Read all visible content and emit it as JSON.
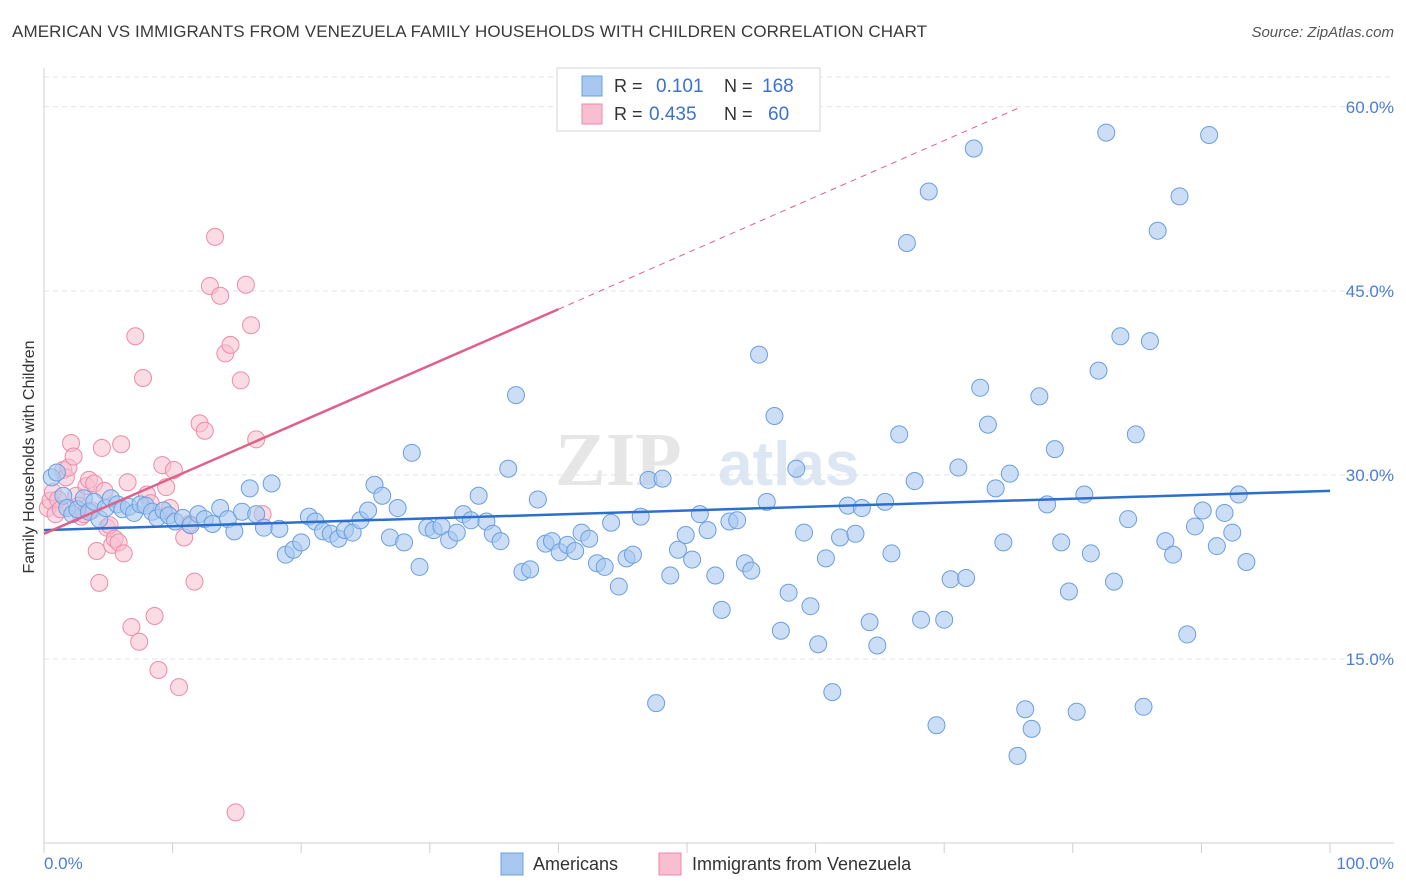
{
  "title": "AMERICAN VS IMMIGRANTS FROM VENEZUELA FAMILY HOUSEHOLDS WITH CHILDREN CORRELATION CHART",
  "source": "Source: ZipAtlas.com",
  "watermark": {
    "zip": "ZIP",
    "atlas": "atlas"
  },
  "legend_box": {
    "rows": [
      {
        "r_label": "R =",
        "r_value": "0.101",
        "n_label": "N =",
        "n_value": "168",
        "color": "#9ec2ef"
      },
      {
        "r_label": "R =",
        "r_value": "0.435",
        "n_label": "N =",
        "n_value": "60",
        "color": "#f5b8cb"
      }
    ]
  },
  "colors": {
    "americans_fill": "#a9c8f0",
    "americans_stroke": "#6a9fe0",
    "americans_line": "#2c6fcf",
    "venezuela_fill": "#f7bfd0",
    "venezuela_stroke": "#ee8aa8",
    "venezuela_line": "#e0608a",
    "axis_label_blue": "#4a7fd4",
    "grid": "#e3e3e3"
  },
  "chart_data": {
    "type": "scatter",
    "title": "AMERICAN VS IMMIGRANTS FROM VENEZUELA FAMILY HOUSEHOLDS WITH CHILDREN CORRELATION CHART",
    "xlabel": "",
    "ylabel": "Family Households with Children",
    "xlim": [
      0,
      100
    ],
    "ylim": [
      0,
      63
    ],
    "x_tick_labels": [
      "0.0%",
      "100.0%"
    ],
    "y_ticks": [
      15,
      30,
      45,
      60
    ],
    "y_tick_labels": [
      "15.0%",
      "30.0%",
      "45.0%",
      "60.0%"
    ],
    "grid": true,
    "legend_position": "bottom",
    "series": [
      {
        "name": "Americans",
        "r": 0.101,
        "n": 168,
        "trend": {
          "x0": 0,
          "y0": 25.5,
          "x1": 100,
          "y1": 28.7
        },
        "points": [
          [
            0.6,
            29.8
          ],
          [
            1.0,
            30.2
          ],
          [
            1.5,
            28.3
          ],
          [
            1.8,
            27.3
          ],
          [
            2.2,
            26.8
          ],
          [
            2.6,
            27.2
          ],
          [
            3.1,
            28.1
          ],
          [
            3.5,
            27.0
          ],
          [
            3.9,
            27.8
          ],
          [
            4.3,
            26.4
          ],
          [
            4.8,
            27.3
          ],
          [
            5.2,
            28.1
          ],
          [
            5.7,
            27.6
          ],
          [
            6.1,
            27.2
          ],
          [
            6.6,
            27.4
          ],
          [
            7.0,
            26.9
          ],
          [
            7.5,
            27.6
          ],
          [
            7.9,
            27.5
          ],
          [
            8.4,
            27.0
          ],
          [
            8.8,
            26.5
          ],
          [
            9.3,
            27.1
          ],
          [
            9.7,
            26.7
          ],
          [
            10.2,
            26.2
          ],
          [
            10.8,
            26.5
          ],
          [
            11.4,
            25.9
          ],
          [
            12.0,
            26.8
          ],
          [
            12.5,
            26.4
          ],
          [
            13.1,
            26.0
          ],
          [
            13.7,
            27.3
          ],
          [
            14.3,
            26.4
          ],
          [
            14.8,
            25.4
          ],
          [
            15.4,
            27.0
          ],
          [
            16.0,
            28.9
          ],
          [
            16.5,
            26.8
          ],
          [
            17.1,
            25.7
          ],
          [
            17.7,
            29.3
          ],
          [
            18.3,
            25.6
          ],
          [
            18.8,
            23.5
          ],
          [
            19.4,
            23.9
          ],
          [
            20.0,
            24.5
          ],
          [
            20.6,
            26.6
          ],
          [
            21.1,
            26.2
          ],
          [
            21.7,
            25.4
          ],
          [
            22.3,
            25.2
          ],
          [
            22.9,
            24.8
          ],
          [
            23.4,
            25.5
          ],
          [
            24.0,
            25.3
          ],
          [
            24.6,
            26.3
          ],
          [
            25.2,
            27.1
          ],
          [
            25.7,
            29.2
          ],
          [
            26.3,
            28.3
          ],
          [
            26.9,
            24.9
          ],
          [
            27.5,
            27.3
          ],
          [
            28.0,
            24.5
          ],
          [
            28.6,
            31.8
          ],
          [
            29.2,
            22.5
          ],
          [
            29.8,
            25.7
          ],
          [
            30.3,
            25.5
          ],
          [
            30.9,
            25.8
          ],
          [
            31.5,
            24.7
          ],
          [
            32.1,
            25.3
          ],
          [
            32.6,
            26.8
          ],
          [
            33.2,
            26.3
          ],
          [
            33.8,
            28.3
          ],
          [
            34.4,
            26.2
          ],
          [
            34.9,
            25.2
          ],
          [
            35.5,
            24.6
          ],
          [
            36.1,
            30.5
          ],
          [
            36.7,
            36.5
          ],
          [
            37.2,
            22.1
          ],
          [
            37.8,
            22.3
          ],
          [
            38.4,
            28.0
          ],
          [
            39.0,
            24.4
          ],
          [
            39.5,
            24.6
          ],
          [
            40.1,
            23.7
          ],
          [
            40.7,
            24.3
          ],
          [
            41.3,
            23.8
          ],
          [
            41.8,
            25.3
          ],
          [
            42.4,
            24.8
          ],
          [
            43.0,
            22.8
          ],
          [
            43.6,
            22.5
          ],
          [
            44.1,
            26.1
          ],
          [
            44.7,
            20.9
          ],
          [
            45.3,
            23.2
          ],
          [
            45.8,
            23.5
          ],
          [
            46.4,
            26.6
          ],
          [
            47.0,
            29.6
          ],
          [
            47.6,
            11.4
          ],
          [
            48.1,
            29.7
          ],
          [
            48.7,
            21.8
          ],
          [
            49.3,
            23.9
          ],
          [
            49.9,
            25.1
          ],
          [
            50.4,
            23.1
          ],
          [
            51.0,
            26.8
          ],
          [
            51.6,
            25.5
          ],
          [
            52.2,
            21.8
          ],
          [
            52.7,
            19.0
          ],
          [
            53.3,
            26.2
          ],
          [
            53.9,
            26.3
          ],
          [
            54.5,
            22.8
          ],
          [
            55.0,
            22.2
          ],
          [
            55.6,
            39.8
          ],
          [
            56.2,
            27.8
          ],
          [
            56.8,
            34.8
          ],
          [
            57.3,
            17.3
          ],
          [
            57.9,
            20.4
          ],
          [
            58.5,
            30.5
          ],
          [
            59.1,
            25.3
          ],
          [
            59.6,
            19.3
          ],
          [
            60.2,
            16.2
          ],
          [
            60.8,
            23.2
          ],
          [
            61.3,
            12.3
          ],
          [
            61.9,
            24.9
          ],
          [
            62.5,
            27.5
          ],
          [
            63.1,
            25.2
          ],
          [
            63.6,
            27.3
          ],
          [
            64.2,
            18.0
          ],
          [
            64.8,
            16.1
          ],
          [
            65.4,
            27.8
          ],
          [
            65.9,
            23.6
          ],
          [
            66.5,
            33.3
          ],
          [
            67.1,
            48.9
          ],
          [
            67.7,
            29.5
          ],
          [
            68.2,
            18.2
          ],
          [
            68.8,
            53.1
          ],
          [
            69.4,
            9.6
          ],
          [
            70.0,
            18.2
          ],
          [
            70.5,
            21.5
          ],
          [
            71.1,
            30.6
          ],
          [
            71.7,
            21.6
          ],
          [
            72.3,
            56.6
          ],
          [
            72.8,
            37.1
          ],
          [
            73.4,
            34.1
          ],
          [
            74.0,
            28.9
          ],
          [
            74.6,
            24.5
          ],
          [
            75.1,
            30.1
          ],
          [
            75.7,
            7.1
          ],
          [
            76.3,
            10.9
          ],
          [
            76.8,
            9.3
          ],
          [
            77.4,
            36.4
          ],
          [
            78.0,
            27.6
          ],
          [
            78.6,
            32.1
          ],
          [
            79.1,
            24.5
          ],
          [
            79.7,
            20.5
          ],
          [
            80.3,
            10.7
          ],
          [
            80.9,
            28.4
          ],
          [
            81.4,
            23.6
          ],
          [
            82.0,
            38.5
          ],
          [
            82.6,
            57.9
          ],
          [
            83.2,
            21.3
          ],
          [
            83.7,
            41.3
          ],
          [
            84.3,
            26.4
          ],
          [
            84.9,
            33.3
          ],
          [
            85.5,
            11.1
          ],
          [
            86.0,
            40.9
          ],
          [
            86.6,
            49.9
          ],
          [
            87.2,
            24.6
          ],
          [
            87.8,
            23.5
          ],
          [
            88.3,
            52.7
          ],
          [
            88.9,
            17.0
          ],
          [
            89.5,
            25.8
          ],
          [
            90.1,
            27.1
          ],
          [
            90.6,
            57.7
          ],
          [
            91.2,
            24.2
          ],
          [
            91.8,
            26.9
          ],
          [
            92.4,
            25.3
          ],
          [
            92.9,
            28.4
          ],
          [
            93.5,
            22.9
          ]
        ]
      },
      {
        "name": "Immigrants from Venezuela",
        "r": 0.435,
        "n": 60,
        "trend": {
          "x0": 0,
          "y0": 25.2,
          "x1": 40,
          "y1": 43.5
        },
        "trend_extension": {
          "x0": 40,
          "y0": 43.5,
          "x1": 76,
          "y1": 60.0
        },
        "points": [
          [
            0.3,
            27.3
          ],
          [
            0.5,
            27.9
          ],
          [
            0.7,
            28.6
          ],
          [
            0.9,
            26.8
          ],
          [
            1.1,
            28.0
          ],
          [
            1.3,
            27.2
          ],
          [
            1.5,
            30.4
          ],
          [
            1.7,
            29.8
          ],
          [
            1.9,
            30.6
          ],
          [
            2.1,
            32.6
          ],
          [
            2.3,
            31.5
          ],
          [
            2.5,
            28.3
          ],
          [
            2.7,
            27.5
          ],
          [
            2.9,
            26.6
          ],
          [
            3.1,
            26.8
          ],
          [
            3.3,
            29.1
          ],
          [
            3.5,
            29.6
          ],
          [
            3.7,
            27.1
          ],
          [
            3.9,
            29.3
          ],
          [
            4.1,
            23.8
          ],
          [
            4.3,
            21.2
          ],
          [
            4.5,
            32.2
          ],
          [
            4.7,
            28.7
          ],
          [
            4.9,
            25.7
          ],
          [
            5.1,
            25.9
          ],
          [
            5.3,
            24.3
          ],
          [
            5.5,
            24.8
          ],
          [
            5.8,
            24.5
          ],
          [
            6.0,
            32.5
          ],
          [
            6.2,
            23.6
          ],
          [
            6.5,
            29.4
          ],
          [
            6.8,
            17.6
          ],
          [
            7.1,
            41.3
          ],
          [
            7.4,
            16.4
          ],
          [
            7.7,
            37.9
          ],
          [
            8.0,
            28.4
          ],
          [
            8.3,
            27.7
          ],
          [
            8.6,
            18.5
          ],
          [
            8.9,
            14.1
          ],
          [
            9.2,
            30.8
          ],
          [
            9.5,
            29.0
          ],
          [
            9.8,
            27.3
          ],
          [
            10.1,
            30.4
          ],
          [
            10.5,
            12.7
          ],
          [
            10.9,
            24.9
          ],
          [
            11.3,
            26.0
          ],
          [
            11.7,
            21.3
          ],
          [
            12.1,
            34.2
          ],
          [
            12.5,
            33.6
          ],
          [
            12.9,
            45.4
          ],
          [
            13.3,
            49.4
          ],
          [
            13.7,
            44.6
          ],
          [
            14.1,
            39.9
          ],
          [
            14.5,
            40.6
          ],
          [
            14.9,
            2.5
          ],
          [
            15.3,
            37.7
          ],
          [
            15.7,
            45.5
          ],
          [
            16.1,
            42.2
          ],
          [
            16.5,
            32.9
          ],
          [
            17.0,
            26.8
          ]
        ]
      }
    ]
  },
  "bottom_legend": [
    {
      "label": "Americans"
    },
    {
      "label": "Immigrants from Venezuela"
    }
  ]
}
